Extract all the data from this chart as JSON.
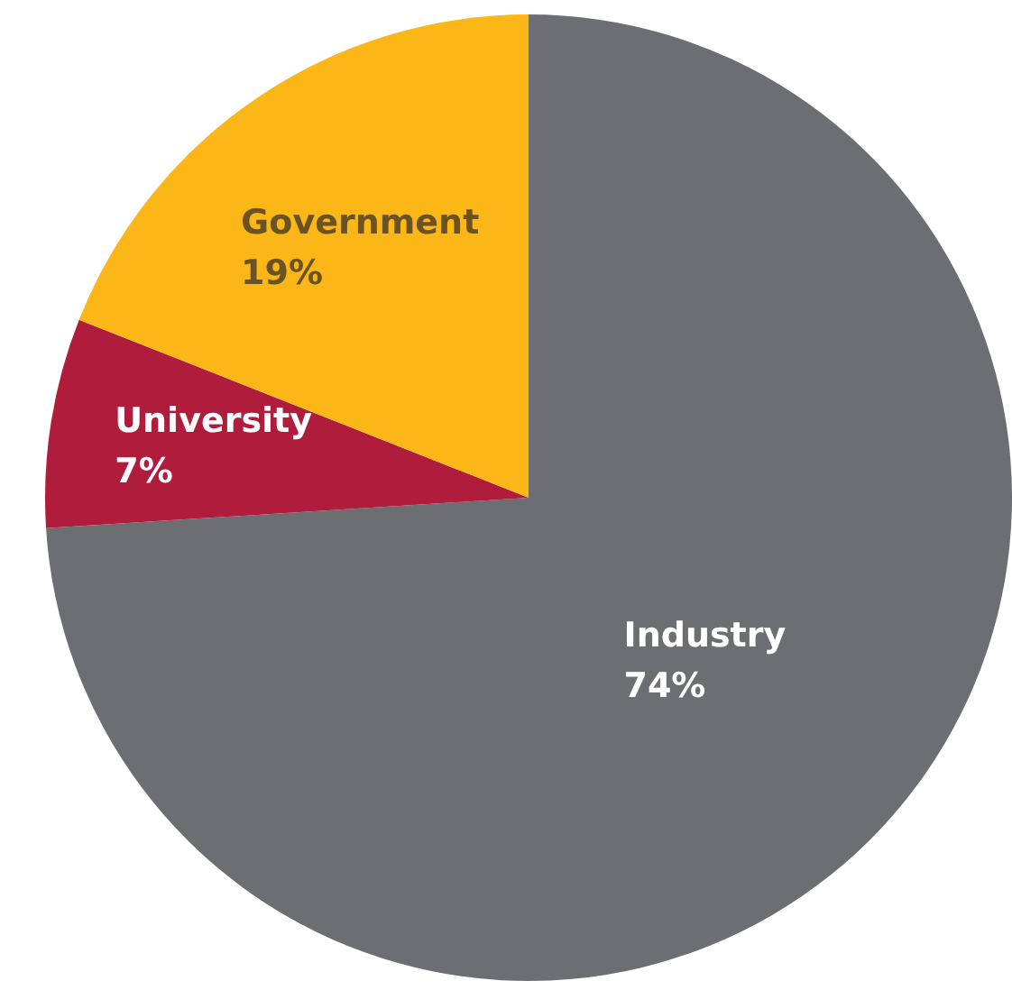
{
  "chart_data": {
    "type": "pie",
    "categories": [
      "Industry",
      "University",
      "Government"
    ],
    "values": [
      74,
      7,
      19
    ],
    "colors": [
      "#6d6e71",
      "#b01c3c",
      "#fbb618"
    ],
    "value_labels": [
      "74%",
      "7%",
      "19%"
    ],
    "legend": false
  }
}
